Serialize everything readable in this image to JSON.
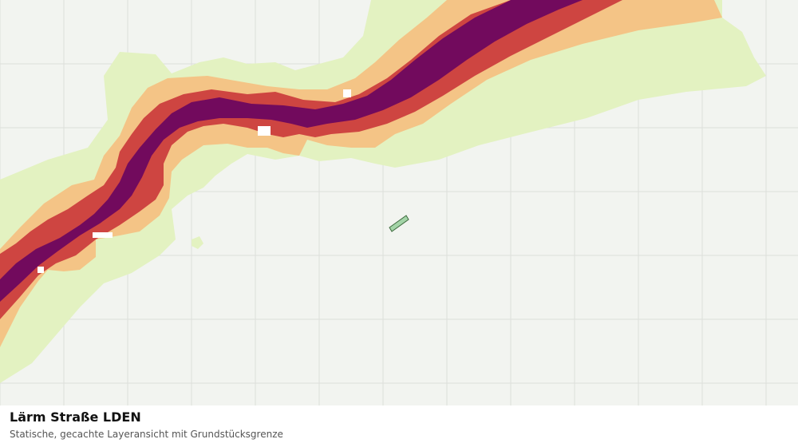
{
  "caption": {
    "title": "Lärm Straße LDEN",
    "subtitle": "Statische, gecachte Layeransicht mit Grundstücksgrenze"
  },
  "map": {
    "background_color": "#f2f4f0",
    "grid_color": "#dcdfda",
    "noise_classes": [
      {
        "id": "zone-lowest",
        "color": "#e3f2c1"
      },
      {
        "id": "zone-low",
        "color": "#f4c486"
      },
      {
        "id": "zone-high",
        "color": "#ce4541"
      },
      {
        "id": "zone-highest",
        "color": "#720a5d"
      }
    ],
    "parcel": {
      "fill": "#a3d4a7",
      "stroke": "#3f6b3f"
    }
  }
}
